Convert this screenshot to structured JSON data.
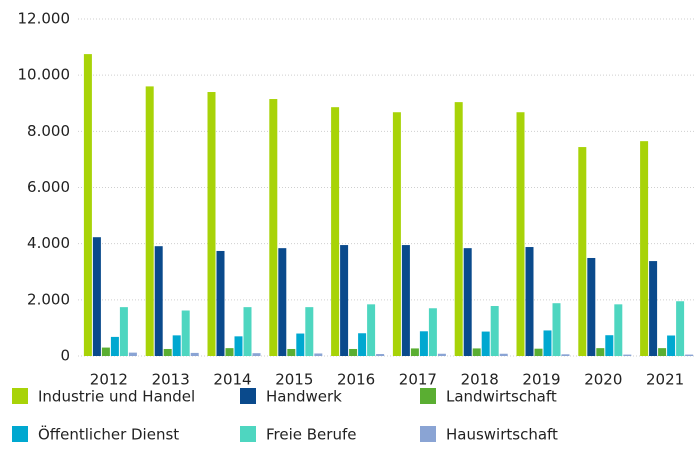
{
  "chart_data": {
    "type": "bar",
    "categories": [
      "2012",
      "2013",
      "2014",
      "2015",
      "2016",
      "2017",
      "2018",
      "2019",
      "2020",
      "2021"
    ],
    "series": [
      {
        "name": "Industrie und Handel",
        "color": "#a8d308",
        "values": [
          10750,
          9600,
          9400,
          9150,
          8860,
          8680,
          9040,
          8680,
          7440,
          7650
        ]
      },
      {
        "name": "Handwerk",
        "color": "#0a4a8c",
        "values": [
          4230,
          3910,
          3740,
          3840,
          3950,
          3950,
          3840,
          3880,
          3490,
          3380
        ]
      },
      {
        "name": "Landwirtschaft",
        "color": "#5aae32",
        "values": [
          300,
          250,
          280,
          250,
          250,
          270,
          270,
          260,
          280,
          280
        ]
      },
      {
        "name": "Öffentlicher Dienst",
        "color": "#00a8d0",
        "values": [
          680,
          735,
          700,
          800,
          810,
          880,
          870,
          910,
          740,
          730
        ]
      },
      {
        "name": "Freie Berufe",
        "color": "#4ed6c0",
        "values": [
          1740,
          1620,
          1740,
          1740,
          1840,
          1700,
          1780,
          1880,
          1840,
          1950
        ]
      },
      {
        "name": "Hauswirtschaft",
        "color": "#8aa4d4",
        "values": [
          120,
          110,
          100,
          90,
          70,
          80,
          80,
          60,
          50,
          50
        ]
      }
    ],
    "ylim": [
      0,
      12000
    ],
    "yticks": [
      0,
      {
        "value": 2000,
        "label": "2.000"
      },
      {
        "value": 4000,
        "label": "4.000"
      },
      {
        "value": 6000,
        "label": "6.000"
      },
      {
        "value": 8000,
        "label": "8.000"
      },
      {
        "value": 10000,
        "label": "10.000"
      },
      {
        "value": 12000,
        "label": "12.000"
      }
    ],
    "grid": true
  }
}
